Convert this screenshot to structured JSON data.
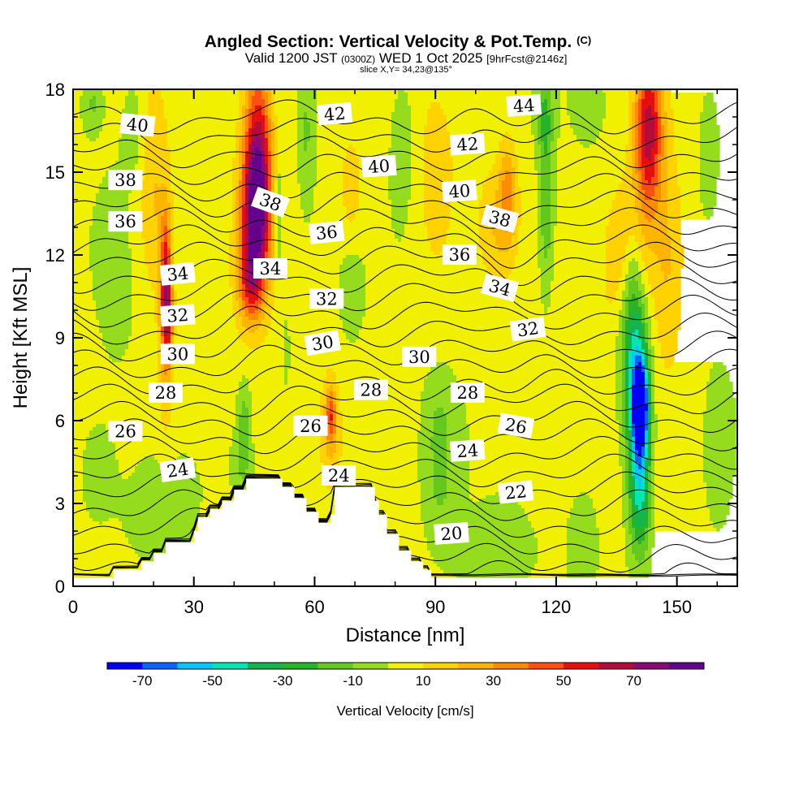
{
  "chart_data": {
    "type": "heatmap",
    "title": "Angled Section: Vertical Velocity & Pot.Temp.",
    "title_mark": "(C)",
    "subtitle": {
      "valid_prefix": "Valid 1200 JST",
      "utc": "(0300Z)",
      "date": "WED 1 Oct 2025",
      "forecast": "[9hrFcst@2146z]"
    },
    "slice_label": "slice X,Y= 34,23@135°",
    "xlabel": "Distance [nm]",
    "ylabel": "Height [Kft MSL]",
    "xlim": [
      0,
      165
    ],
    "ylim": [
      0,
      18
    ],
    "x_ticks": [
      "0",
      "30",
      "60",
      "90",
      "120",
      "150"
    ],
    "y_ticks": [
      "0",
      "3",
      "6",
      "9",
      "12",
      "15",
      "18"
    ],
    "colorbar": {
      "label": "Vertical Velocity [cm/s]",
      "tick_labels": [
        "-70",
        "-50",
        "-30",
        "-10",
        "10",
        "30",
        "50",
        "70"
      ],
      "levels": [
        -80,
        -70,
        -60,
        -50,
        -40,
        -30,
        -20,
        -10,
        0,
        10,
        20,
        30,
        40,
        50,
        60,
        70,
        80
      ],
      "colors": [
        "#0000ff",
        "#0a64ff",
        "#00c8ff",
        "#00e6b4",
        "#14b450",
        "#28b428",
        "#64c81e",
        "#96dc1e",
        "#f0f000",
        "#ffd200",
        "#ffb400",
        "#ff8c00",
        "#ff5014",
        "#e60f0f",
        "#b40a3c",
        "#8c0a78",
        "#64008c"
      ]
    },
    "velocity_features": [
      {
        "x": 45.5,
        "y": 13.5,
        "sx": 3.6,
        "sy": 2.6,
        "amp": 80
      },
      {
        "x": 46,
        "y": 16.5,
        "sx": 3.5,
        "sy": 3.0,
        "amp": 45
      },
      {
        "x": 44,
        "y": 11.0,
        "sx": 3.2,
        "sy": 1.6,
        "amp": 38
      },
      {
        "x": 23,
        "y": 11.5,
        "sx": 1.4,
        "sy": 2.2,
        "amp": 45
      },
      {
        "x": 23.5,
        "y": 9.8,
        "sx": 1.3,
        "sy": 1.5,
        "amp": 40
      },
      {
        "x": 23,
        "y": 8.0,
        "sx": 2.0,
        "sy": 2.5,
        "amp": 22
      },
      {
        "x": 143,
        "y": 16.5,
        "sx": 3.5,
        "sy": 3.0,
        "amp": 62
      },
      {
        "x": 138,
        "y": 12.0,
        "sx": 6.0,
        "sy": 3.0,
        "amp": 22
      },
      {
        "x": 148,
        "y": 11.5,
        "sx": 4.0,
        "sy": 4.0,
        "amp": 18
      },
      {
        "x": 108,
        "y": 14.2,
        "sx": 2.2,
        "sy": 1.8,
        "amp": 28
      },
      {
        "x": 105,
        "y": 13.0,
        "sx": 4.0,
        "sy": 2.0,
        "amp": 14
      },
      {
        "x": 64,
        "y": 6.2,
        "sx": 1.2,
        "sy": 1.0,
        "amp": 32
      },
      {
        "x": 64,
        "y": 5.5,
        "sx": 2.5,
        "sy": 2.0,
        "amp": 15
      },
      {
        "x": 69,
        "y": 14.5,
        "sx": 3.0,
        "sy": 2.0,
        "amp": 15
      },
      {
        "x": 90,
        "y": 14.0,
        "sx": 5.0,
        "sy": 4.0,
        "amp": 10
      },
      {
        "x": 20,
        "y": 14.0,
        "sx": 3.5,
        "sy": 4.0,
        "amp": 16
      },
      {
        "x": 141,
        "y": 6.5,
        "sx": 1.8,
        "sy": 1.5,
        "amp": -75
      },
      {
        "x": 140.5,
        "y": 5.5,
        "sx": 2.8,
        "sy": 3.5,
        "amp": -45
      },
      {
        "x": 139,
        "y": 8.5,
        "sx": 3.5,
        "sy": 3.0,
        "amp": -32
      },
      {
        "x": 139,
        "y": 11.0,
        "sx": 2.5,
        "sy": 2.5,
        "amp": -15
      },
      {
        "x": 141,
        "y": 3.0,
        "sx": 2.5,
        "sy": 2.0,
        "amp": -22
      },
      {
        "x": 117.5,
        "y": 14.0,
        "sx": 1.8,
        "sy": 3.5,
        "amp": -22
      },
      {
        "x": 117,
        "y": 17.0,
        "sx": 2.0,
        "sy": 1.2,
        "amp": -18
      },
      {
        "x": 91,
        "y": 3.5,
        "sx": 4.5,
        "sy": 2.5,
        "amp": -14
      },
      {
        "x": 91,
        "y": 6.0,
        "sx": 3.0,
        "sy": 1.5,
        "amp": -9
      },
      {
        "x": 42.5,
        "y": 6.0,
        "sx": 1.5,
        "sy": 1.3,
        "amp": -18
      },
      {
        "x": 42,
        "y": 4.5,
        "sx": 1.8,
        "sy": 0.9,
        "amp": -15
      },
      {
        "x": 5,
        "y": 17.5,
        "sx": 2.5,
        "sy": 1.0,
        "amp": -15
      },
      {
        "x": 15,
        "y": 16.5,
        "sx": 3.0,
        "sy": 2.0,
        "amp": -11
      },
      {
        "x": 10,
        "y": 12.0,
        "sx": 3.5,
        "sy": 3.0,
        "amp": -8
      },
      {
        "x": 6,
        "y": 4.0,
        "sx": 5.0,
        "sy": 2.0,
        "amp": -10
      },
      {
        "x": 20,
        "y": 2.5,
        "sx": 8.0,
        "sy": 1.8,
        "amp": -12
      },
      {
        "x": 51,
        "y": 13.5,
        "sx": 1.0,
        "sy": 2.5,
        "amp": -15
      },
      {
        "x": 53,
        "y": 8.5,
        "sx": 1.0,
        "sy": 1.5,
        "amp": -10
      },
      {
        "x": 58,
        "y": 16.5,
        "sx": 1.5,
        "sy": 2.5,
        "amp": -12
      },
      {
        "x": 69,
        "y": 10.5,
        "sx": 2.5,
        "sy": 1.5,
        "amp": -12
      },
      {
        "x": 82,
        "y": 16.0,
        "sx": 3.0,
        "sy": 2.5,
        "amp": -11
      },
      {
        "x": 128,
        "y": 17.5,
        "sx": 3.0,
        "sy": 1.0,
        "amp": -10
      },
      {
        "x": 158,
        "y": 16.0,
        "sx": 3.0,
        "sy": 2.5,
        "amp": -10
      },
      {
        "x": 160,
        "y": 4.0,
        "sx": 3.5,
        "sy": 2.5,
        "amp": -8
      },
      {
        "x": 102,
        "y": 1.0,
        "sx": 8.0,
        "sy": 1.5,
        "amp": -9
      },
      {
        "x": 127,
        "y": 1.8,
        "sx": 3.0,
        "sy": 1.5,
        "amp": -10
      }
    ],
    "terrain_steps": [
      [
        0,
        0.3
      ],
      [
        10,
        0.6
      ],
      [
        17,
        0.9
      ],
      [
        20,
        1.2
      ],
      [
        23,
        1.6
      ],
      [
        30,
        2.0
      ],
      [
        31,
        2.5
      ],
      [
        34,
        2.8
      ],
      [
        37,
        3.1
      ],
      [
        40,
        3.5
      ],
      [
        43,
        3.9
      ],
      [
        49,
        3.9
      ],
      [
        52,
        3.6
      ],
      [
        55,
        3.2
      ],
      [
        58,
        2.7
      ],
      [
        61,
        2.3
      ],
      [
        64,
        2.6
      ],
      [
        65,
        3.6
      ],
      [
        72,
        3.6
      ],
      [
        75,
        3.1
      ],
      [
        76,
        2.6
      ],
      [
        78,
        1.9
      ],
      [
        81,
        1.3
      ],
      [
        84,
        0.9
      ],
      [
        87,
        0.6
      ],
      [
        89,
        0.3
      ],
      [
        165,
        0.3
      ]
    ],
    "theta_lines_kelvin_offset": {
      "start": 18,
      "end": 46,
      "step": 1
    },
    "theta_labels": [
      {
        "x": 16,
        "y": 16.7,
        "text": "40",
        "rot": 6
      },
      {
        "x": 13,
        "y": 14.7,
        "text": "38",
        "rot": 0
      },
      {
        "x": 13,
        "y": 13.2,
        "text": "36",
        "rot": 0
      },
      {
        "x": 26,
        "y": 11.3,
        "text": "34",
        "rot": -6
      },
      {
        "x": 26,
        "y": 9.8,
        "text": "32",
        "rot": -4
      },
      {
        "x": 26,
        "y": 8.4,
        "text": "30",
        "rot": 0
      },
      {
        "x": 23,
        "y": 7.0,
        "text": "28",
        "rot": 0
      },
      {
        "x": 13,
        "y": 5.6,
        "text": "26",
        "rot": 0
      },
      {
        "x": 26,
        "y": 4.2,
        "text": "24",
        "rot": -8
      },
      {
        "x": 49,
        "y": 13.9,
        "text": "38",
        "rot": 20
      },
      {
        "x": 49,
        "y": 11.5,
        "text": "34",
        "rot": 0
      },
      {
        "x": 65,
        "y": 17.1,
        "text": "42",
        "rot": -5
      },
      {
        "x": 76,
        "y": 15.2,
        "text": "40",
        "rot": -4
      },
      {
        "x": 63,
        "y": 12.8,
        "text": "36",
        "rot": -6
      },
      {
        "x": 63,
        "y": 10.4,
        "text": "32",
        "rot": 0
      },
      {
        "x": 62,
        "y": 8.8,
        "text": "30",
        "rot": -10
      },
      {
        "x": 59,
        "y": 5.8,
        "text": "26",
        "rot": 0
      },
      {
        "x": 74,
        "y": 7.1,
        "text": "28",
        "rot": 0
      },
      {
        "x": 66,
        "y": 4.0,
        "text": "24",
        "rot": 0
      },
      {
        "x": 112,
        "y": 17.4,
        "text": "44",
        "rot": -4
      },
      {
        "x": 98,
        "y": 16.0,
        "text": "42",
        "rot": -4
      },
      {
        "x": 96,
        "y": 14.3,
        "text": "40",
        "rot": -4
      },
      {
        "x": 106,
        "y": 13.3,
        "text": "38",
        "rot": 15
      },
      {
        "x": 96,
        "y": 12.0,
        "text": "36",
        "rot": 0
      },
      {
        "x": 106,
        "y": 10.8,
        "text": "34",
        "rot": 15
      },
      {
        "x": 113,
        "y": 9.3,
        "text": "32",
        "rot": -8
      },
      {
        "x": 86,
        "y": 8.3,
        "text": "30",
        "rot": 0
      },
      {
        "x": 98,
        "y": 7.0,
        "text": "28",
        "rot": 0
      },
      {
        "x": 110,
        "y": 5.8,
        "text": "26",
        "rot": 10
      },
      {
        "x": 98,
        "y": 4.9,
        "text": "24",
        "rot": -4
      },
      {
        "x": 110,
        "y": 3.4,
        "text": "22",
        "rot": -6
      },
      {
        "x": 94,
        "y": 1.9,
        "text": "20",
        "rot": -4
      }
    ],
    "grid": false,
    "legend": "bottom"
  },
  "colors": {
    "background": "#ffffff",
    "contour": "#000000",
    "terrain": "#ffffff"
  }
}
